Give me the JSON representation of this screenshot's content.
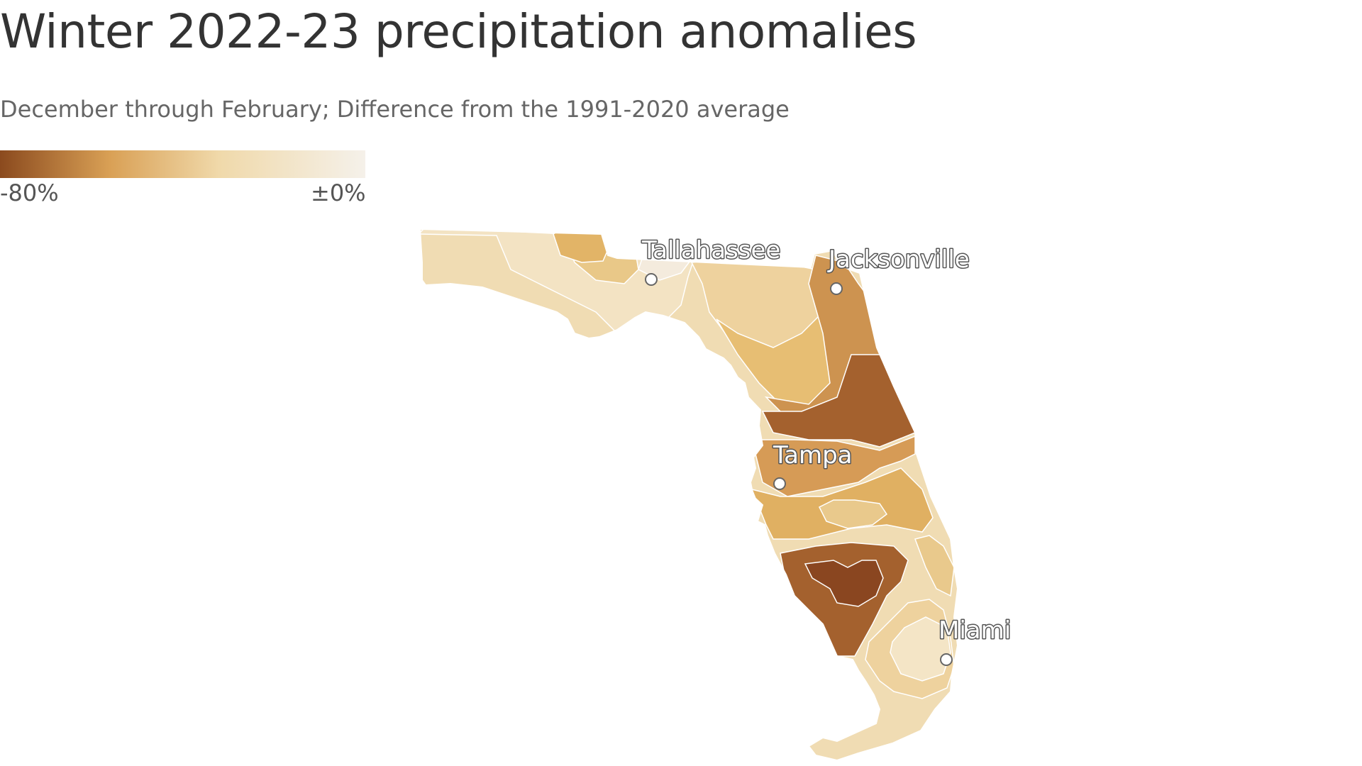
{
  "title": "Winter 2022-23 precipitation anomalies",
  "subtitle": "December through February; Difference from the 1991-2020 average",
  "legend": {
    "min_label": "-80%",
    "max_label": "±0%",
    "min_value": -80,
    "max_value": 0,
    "color_min": "#8b4a1e",
    "color_mid": "#dfaa5a",
    "color_max": "#f5f1ea"
  },
  "map": {
    "region": "Florida",
    "cities": [
      {
        "name": "Tallahassee"
      },
      {
        "name": "Jacksonville"
      },
      {
        "name": "Tampa"
      },
      {
        "name": "Miami"
      }
    ]
  }
}
